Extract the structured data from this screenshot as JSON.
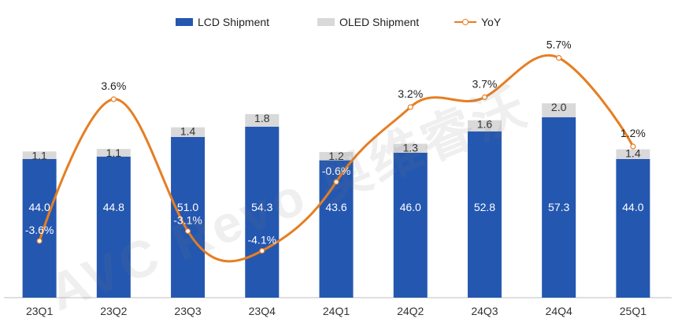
{
  "chart_data": {
    "type": "bar",
    "title": "",
    "categories": [
      "23Q1",
      "23Q2",
      "23Q3",
      "23Q4",
      "24Q1",
      "24Q2",
      "24Q3",
      "24Q4",
      "25Q1"
    ],
    "series": [
      {
        "name": "LCD Shipment",
        "values": [
          44.0,
          44.8,
          51.0,
          54.3,
          43.6,
          46.0,
          52.8,
          57.3,
          44.0
        ],
        "labels": [
          "44.0",
          "44.8",
          "51.0",
          "54.3",
          "43.6",
          "46.0",
          "52.8",
          "57.3",
          "44.0"
        ],
        "color": "#2457B0"
      },
      {
        "name": "OLED Shipment",
        "values": [
          1.1,
          1.1,
          1.4,
          1.8,
          1.2,
          1.3,
          1.6,
          2.0,
          1.4
        ],
        "labels": [
          "1.1",
          "1.1",
          "1.4",
          "1.8",
          "1.2",
          "1.3",
          "1.6",
          "2.0",
          "1.4"
        ],
        "color": "#D9D9D9"
      },
      {
        "name": "YoY",
        "type": "line",
        "values": [
          -3.6,
          3.6,
          -3.1,
          -4.1,
          -0.6,
          3.2,
          3.7,
          5.7,
          1.2
        ],
        "labels": [
          "-3.6%",
          "3.6%",
          "-3.1%",
          "-4.1%",
          "-0.6%",
          "3.2%",
          "3.7%",
          "5.7%",
          "1.2%"
        ],
        "color": "#E67E22"
      }
    ],
    "ylim": [
      0,
      60
    ],
    "yoy_range": [
      -5,
      6
    ],
    "legend_position": "top-center",
    "grid": false
  },
  "watermark": "AVC Revo 奥维睿沃"
}
